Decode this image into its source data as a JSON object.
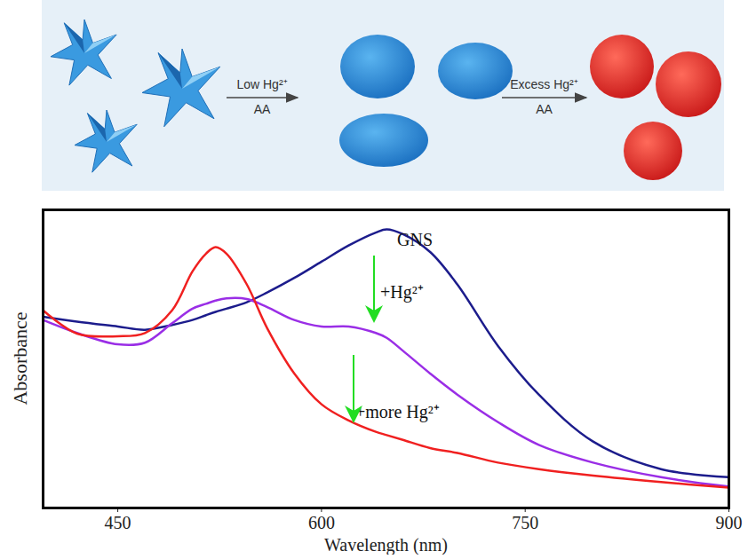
{
  "chart_data": {
    "type": "line",
    "x_label": "Wavelength (nm)",
    "y_label": "Absorbance",
    "xlim": [
      395,
      900
    ],
    "xticks": [
      450,
      600,
      750,
      900
    ],
    "ylim": [
      0.08,
      1
    ],
    "yticks": [],
    "tick_labels": "x",
    "grid": false,
    "x": [
      395,
      420,
      450,
      470,
      490,
      505,
      515,
      522,
      530,
      545,
      560,
      580,
      600,
      620,
      640,
      648,
      660,
      680,
      700,
      730,
      760,
      800,
      850,
      900
    ],
    "series": [
      {
        "name": "GNS",
        "color": "#1c1c8c",
        "values": [
          0.67,
          0.655,
          0.64,
          0.63,
          0.645,
          0.66,
          0.675,
          0.685,
          0.695,
          0.715,
          0.745,
          0.79,
          0.84,
          0.89,
          0.93,
          0.94,
          0.925,
          0.87,
          0.77,
          0.58,
          0.43,
          0.285,
          0.2,
          0.175
        ]
      },
      {
        "name": "+Hg²⁺",
        "color": "#9a2ee6",
        "values": [
          0.66,
          0.62,
          0.585,
          0.59,
          0.65,
          0.695,
          0.71,
          0.72,
          0.727,
          0.725,
          0.7,
          0.66,
          0.64,
          0.64,
          0.62,
          0.605,
          0.565,
          0.495,
          0.43,
          0.345,
          0.275,
          0.22,
          0.175,
          0.146
        ]
      },
      {
        "name": "+more Hg²⁺",
        "color": "#f02020",
        "values": [
          0.69,
          0.618,
          0.61,
          0.62,
          0.69,
          0.81,
          0.865,
          0.885,
          0.865,
          0.77,
          0.635,
          0.495,
          0.4,
          0.35,
          0.315,
          0.305,
          0.29,
          0.265,
          0.25,
          0.22,
          0.2,
          0.18,
          0.16,
          0.143
        ]
      }
    ]
  },
  "illustration": {
    "steps": [
      {
        "label": "Low Hg²⁺",
        "reagent": "AA"
      },
      {
        "label": "Excess Hg²⁺",
        "reagent": "AA"
      }
    ]
  }
}
